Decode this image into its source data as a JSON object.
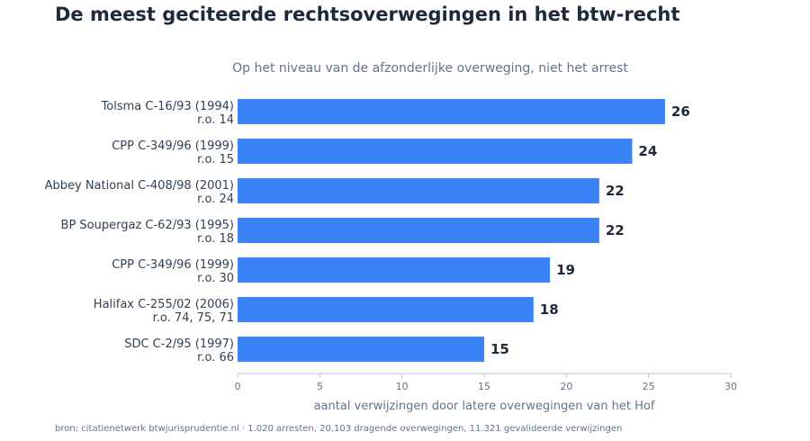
{
  "chart_data": {
    "type": "bar",
    "orientation": "horizontal",
    "title": "De meest geciteerde rechtsoverwegingen in het btw-recht",
    "subtitle": "Op het niveau van de afzonderlijke overweging, niet het arrest",
    "categories": [
      {
        "line1": "Tolsma C-16/93 (1994)",
        "line2": "r.o. 14"
      },
      {
        "line1": "CPP C-349/96 (1999)",
        "line2": "r.o. 15"
      },
      {
        "line1": "Abbey National C-408/98 (2001)",
        "line2": "r.o. 24"
      },
      {
        "line1": "BP Soupergaz C-62/93 (1995)",
        "line2": "r.o. 18"
      },
      {
        "line1": "CPP C-349/96 (1999)",
        "line2": "r.o. 30"
      },
      {
        "line1": "Halifax C-255/02 (2006)",
        "line2": "r.o. 74, 75, 71"
      },
      {
        "line1": "SDC C-2/95 (1997)",
        "line2": "r.o. 66"
      }
    ],
    "values": [
      26,
      24,
      22,
      22,
      19,
      18,
      15
    ],
    "value_labels": [
      "26",
      "24",
      "22",
      "22",
      "19",
      "18",
      "15"
    ],
    "xlabel": "aantal verwijzingen door latere overwegingen van het Hof",
    "ylabel": "",
    "xlim": [
      0,
      30
    ],
    "xticks": [
      0,
      5,
      10,
      15,
      20,
      25,
      30
    ],
    "xtick_labels": [
      "0",
      "5",
      "10",
      "15",
      "20",
      "25",
      "30"
    ],
    "bar_color": "#3b82f6",
    "grid": false,
    "legend": "none"
  },
  "source_note": "bron: citatienetwerk btwjurisprudentie.nl · 1.020 arresten, 20.103 dragende overwegingen, 11.321 gevalideerde verwijzingen"
}
